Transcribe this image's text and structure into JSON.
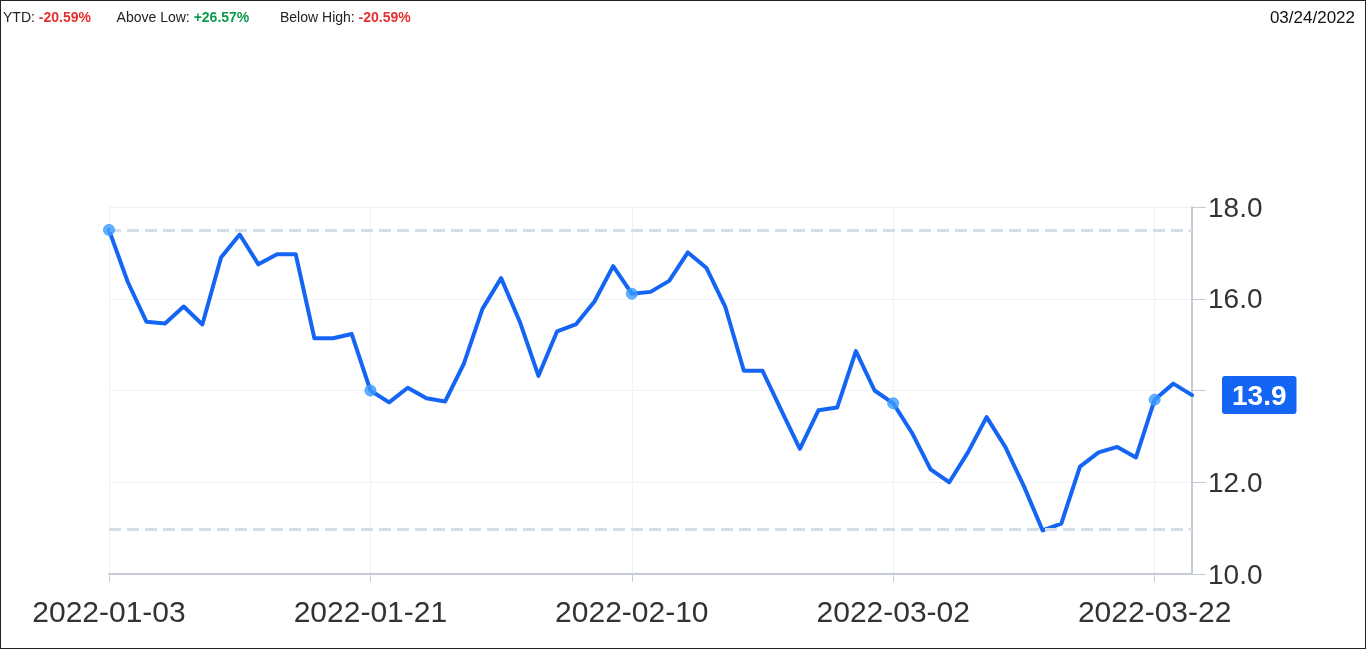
{
  "chart_data": {
    "type": "line",
    "annotations": [
      "YTD: -20.59%",
      "Above Low: +26.57%",
      "Below High: -20.59%",
      "03/24/2022"
    ],
    "categories": [
      "2022-01-03",
      null,
      null,
      null,
      null,
      null,
      null,
      null,
      null,
      null,
      null,
      null,
      null,
      null,
      "2022-01-21",
      null,
      null,
      null,
      null,
      null,
      null,
      null,
      null,
      null,
      null,
      null,
      null,
      null,
      "2022-02-10",
      null,
      null,
      null,
      null,
      null,
      null,
      null,
      null,
      null,
      null,
      null,
      null,
      null,
      "2022-03-02",
      null,
      null,
      null,
      null,
      null,
      null,
      null,
      null,
      null,
      null,
      null,
      null,
      null,
      "2022-03-22",
      null,
      null
    ],
    "series": [
      {
        "color": "#1565f5",
        "values": [
          17.5,
          16.37,
          15.5,
          15.46,
          15.83,
          15.44,
          16.9,
          17.4,
          16.75,
          16.97,
          16.97,
          15.14,
          15.14,
          15.23,
          14.0,
          13.74,
          14.06,
          13.83,
          13.76,
          14.58,
          15.78,
          16.45,
          15.5,
          14.32,
          15.29,
          15.44,
          15.94,
          16.71,
          16.11,
          16.15,
          16.39,
          17.01,
          16.67,
          15.83,
          14.43,
          14.43,
          13.57,
          12.73,
          13.57,
          13.63,
          14.86,
          14.0,
          13.72,
          13.08,
          12.28,
          12.0,
          12.65,
          13.42,
          12.77,
          11.91,
          10.95,
          11.1,
          12.34,
          12.65,
          12.77,
          12.54,
          13.8,
          14.15,
          13.9
        ],
        "value_labels": [
          null,
          null,
          null,
          null,
          null,
          null,
          null,
          null,
          null,
          null,
          null,
          null,
          null,
          null,
          null,
          null,
          null,
          null,
          null,
          null,
          null,
          null,
          null,
          null,
          null,
          null,
          null,
          null,
          null,
          null,
          null,
          null,
          null,
          null,
          null,
          null,
          null,
          null,
          null,
          null,
          null,
          null,
          null,
          null,
          null,
          null,
          null,
          null,
          null,
          null,
          null,
          null,
          null,
          null,
          null,
          null,
          null,
          null,
          "13.9"
        ]
      },
      {
        "type": "scatter",
        "marker": "circle",
        "color": "#3d9bff",
        "values": [
          17.5,
          null,
          null,
          null,
          null,
          null,
          null,
          null,
          null,
          null,
          null,
          null,
          null,
          null,
          14.0,
          null,
          null,
          null,
          null,
          null,
          null,
          null,
          null,
          null,
          null,
          null,
          null,
          null,
          16.11,
          null,
          null,
          null,
          null,
          null,
          null,
          null,
          null,
          null,
          null,
          null,
          null,
          null,
          13.72,
          null,
          null,
          null,
          null,
          null,
          null,
          null,
          null,
          null,
          null,
          null,
          null,
          null,
          13.8,
          null,
          null
        ]
      }
    ],
    "ylim": [
      10,
      18
    ],
    "yticks": [
      {
        "value": 10,
        "label": "10.0"
      },
      {
        "value": 12,
        "label": "12.0"
      },
      {
        "value": 14,
        "label": null
      },
      {
        "value": 16,
        "label": "16.0"
      },
      {
        "value": 18,
        "label": "18.0"
      }
    ],
    "ref_lines": [
      {
        "axis": "y",
        "value": 17.5,
        "color": "#d5dde8",
        "line_style": "dashed"
      },
      {
        "axis": "y",
        "value": 10.98,
        "color": "#d5dde8",
        "line_style": "dashed"
      }
    ],
    "grid": true,
    "line_style": "solid"
  }
}
